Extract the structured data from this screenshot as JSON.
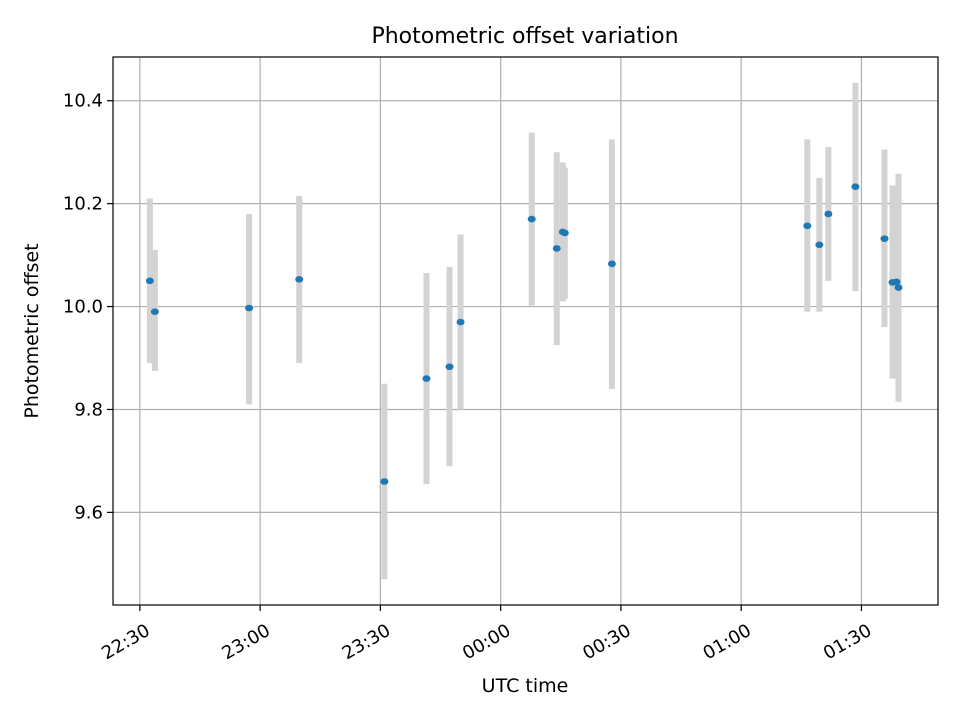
{
  "chart_data": {
    "type": "scatter",
    "title": "Photometric offset variation",
    "xlabel": "UTC time",
    "ylabel": "Photometric offset",
    "grid": true,
    "x_axis_type": "time",
    "xlim": [
      "22:23:18",
      "01:49:06"
    ],
    "ylim": [
      9.42,
      10.485
    ],
    "x_ticks": [
      "22:30",
      "23:00",
      "23:30",
      "00:00",
      "00:30",
      "01:00",
      "01:30"
    ],
    "y_ticks": [
      9.6,
      9.8,
      10.0,
      10.2,
      10.4
    ],
    "y_tick_labels": [
      "9.6",
      "9.8",
      "10.0",
      "10.2",
      "10.4"
    ],
    "colors": {
      "points": "#1f77b4",
      "error_bars": "#d3d3d3",
      "grid": "#b0b0b0"
    },
    "points": [
      {
        "x": "22:32:30",
        "y": 10.05,
        "err_low": 9.89,
        "err_high": 10.21
      },
      {
        "x": "22:33:45",
        "y": 9.99,
        "err_low": 9.875,
        "err_high": 10.11
      },
      {
        "x": "22:57:15",
        "y": 9.997,
        "err_low": 9.81,
        "err_high": 10.18
      },
      {
        "x": "23:09:45",
        "y": 10.053,
        "err_low": 9.89,
        "err_high": 10.215
      },
      {
        "x": "23:31:00",
        "y": 9.66,
        "err_low": 9.47,
        "err_high": 9.85
      },
      {
        "x": "23:41:30",
        "y": 9.86,
        "err_low": 9.655,
        "err_high": 10.065
      },
      {
        "x": "23:47:15",
        "y": 9.883,
        "err_low": 9.69,
        "err_high": 10.077
      },
      {
        "x": "23:50:00",
        "y": 9.97,
        "err_low": 9.8,
        "err_high": 10.14
      },
      {
        "x": "00:07:45",
        "y": 10.17,
        "err_low": 10.002,
        "err_high": 10.338
      },
      {
        "x": "00:14:00",
        "y": 10.113,
        "err_low": 9.925,
        "err_high": 10.3
      },
      {
        "x": "00:15:30",
        "y": 10.145,
        "err_low": 10.01,
        "err_high": 10.28
      },
      {
        "x": "00:16:00",
        "y": 10.143,
        "err_low": 10.015,
        "err_high": 10.27
      },
      {
        "x": "00:27:45",
        "y": 10.083,
        "err_low": 9.84,
        "err_high": 10.325
      },
      {
        "x": "01:16:30",
        "y": 10.157,
        "err_low": 9.99,
        "err_high": 10.325
      },
      {
        "x": "01:19:30",
        "y": 10.12,
        "err_low": 9.99,
        "err_high": 10.25
      },
      {
        "x": "01:21:45",
        "y": 10.18,
        "err_low": 10.05,
        "err_high": 10.31
      },
      {
        "x": "01:28:30",
        "y": 10.233,
        "err_low": 10.03,
        "err_high": 10.435
      },
      {
        "x": "01:35:45",
        "y": 10.132,
        "err_low": 9.96,
        "err_high": 10.305
      },
      {
        "x": "01:37:45",
        "y": 10.047,
        "err_low": 9.86,
        "err_high": 10.235
      },
      {
        "x": "01:38:45",
        "y": 10.048,
        "err_low": 9.86,
        "err_high": 10.235
      },
      {
        "x": "01:39:15",
        "y": 10.037,
        "err_low": 9.815,
        "err_high": 10.258
      }
    ]
  }
}
